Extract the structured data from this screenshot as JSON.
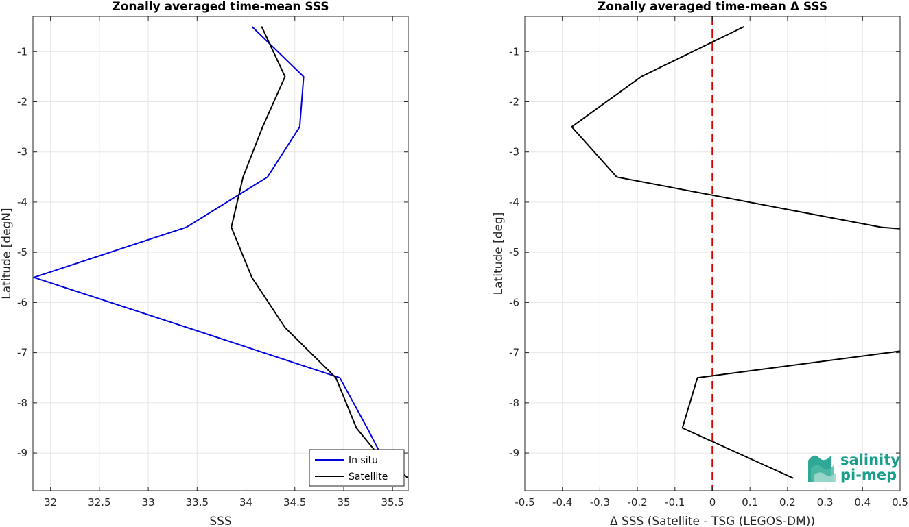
{
  "chart_data": [
    {
      "type": "line",
      "title": "Zonally averaged time-mean SSS",
      "xlabel": "SSS",
      "ylabel": "Latitude [degN]",
      "xlim": [
        31.82,
        35.66
      ],
      "ylim": [
        -9.75,
        -0.3
      ],
      "xticks": [
        32,
        32.5,
        33,
        33.5,
        34,
        34.5,
        35,
        35.5
      ],
      "xtick_labels": [
        "32",
        "32.5",
        "33",
        "33.5",
        "34",
        "34.5",
        "35",
        "35.5"
      ],
      "yticks": [
        -1,
        -2,
        -3,
        -4,
        -5,
        -6,
        -7,
        -8,
        -9
      ],
      "ytick_labels": [
        "-1",
        "-2",
        "-3",
        "-4",
        "-5",
        "-6",
        "-7",
        "-8",
        "-9"
      ],
      "grid": true,
      "legend": {
        "placement": "bottom-right"
      },
      "series": [
        {
          "name": "In situ",
          "color": "#0000e0",
          "points": [
            [
              34.06,
              -0.5
            ],
            [
              34.59,
              -1.5
            ],
            [
              34.55,
              -2.5
            ],
            [
              34.22,
              -3.5
            ],
            [
              33.39,
              -4.5
            ],
            [
              31.83,
              -5.5
            ],
            [
              33.4,
              -6.5
            ],
            [
              34.96,
              -7.5
            ],
            [
              35.24,
              -8.5
            ],
            [
              35.4,
              -9.1
            ]
          ]
        },
        {
          "name": "Satellite",
          "color": "#000000",
          "points": [
            [
              34.16,
              -0.5
            ],
            [
              34.4,
              -1.5
            ],
            [
              34.17,
              -2.5
            ],
            [
              33.97,
              -3.5
            ],
            [
              33.85,
              -4.5
            ],
            [
              34.06,
              -5.5
            ],
            [
              34.4,
              -6.5
            ],
            [
              34.92,
              -7.5
            ],
            [
              35.13,
              -8.5
            ],
            [
              35.34,
              -9.0
            ],
            [
              35.66,
              -9.5
            ]
          ]
        }
      ]
    },
    {
      "type": "line",
      "title": "Zonally averaged time-mean Δ SSS",
      "xlabel": "Δ SSS (Satellite - TSG (LEGOS-DM))",
      "ylabel": "Latitude [deg]",
      "xlim": [
        -0.5,
        0.5
      ],
      "ylim": [
        -9.75,
        -0.3
      ],
      "xticks": [
        -0.5,
        -0.4,
        -0.3,
        -0.2,
        -0.1,
        0,
        0.1,
        0.2,
        0.3,
        0.4,
        0.5
      ],
      "xtick_labels": [
        "-0.5",
        "-0.4",
        "-0.3",
        "-0.2",
        "-0.1",
        "0",
        "0.1",
        "0.2",
        "0.3",
        "0.4",
        "0.5"
      ],
      "yticks": [
        -1,
        -2,
        -3,
        -4,
        -5,
        -6,
        -7,
        -8,
        -9
      ],
      "ytick_labels": [
        "-1",
        "-2",
        "-3",
        "-4",
        "-5",
        "-6",
        "-7",
        "-8",
        "-9"
      ],
      "grid": true,
      "reference_line": {
        "x": 0,
        "color": "#e00000",
        "style": "dashed"
      },
      "series": [
        {
          "color": "#000000",
          "points": [
            [
              0.085,
              -0.5
            ],
            [
              -0.19,
              -1.5
            ],
            [
              -0.375,
              -2.5
            ],
            [
              -0.255,
              -3.5
            ],
            [
              0.45,
              -4.5
            ],
            [
              0.5,
              -4.53
            ]
          ]
        },
        {
          "color": "#000000",
          "points": [
            [
              0.5,
              -6.97
            ],
            [
              -0.04,
              -7.5
            ],
            [
              -0.08,
              -8.5
            ],
            [
              0.215,
              -9.5
            ]
          ]
        }
      ]
    }
  ],
  "logo": {
    "line1": "salinity",
    "line2": "pi-mep",
    "color": "#1a9e8c"
  }
}
